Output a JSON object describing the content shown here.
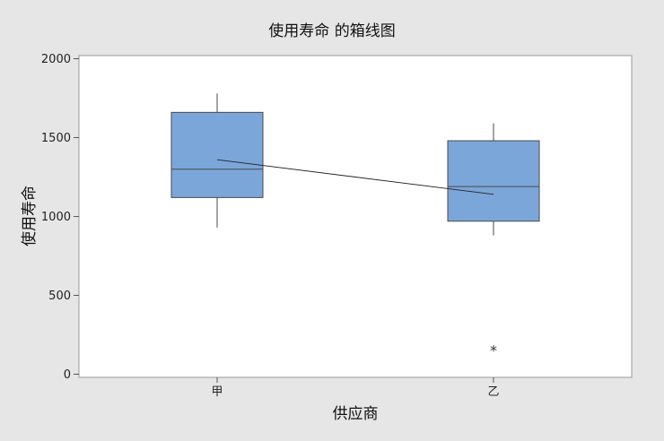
{
  "chart_data": {
    "type": "box",
    "title": "使用寿命 的箱线图",
    "xlabel": "供应商",
    "ylabel": "使用寿命",
    "categories": [
      "甲",
      "乙"
    ],
    "ylim": [
      -20,
      2020
    ],
    "yticks": [
      0,
      500,
      1000,
      1500,
      2000
    ],
    "grid": false,
    "boxes": [
      {
        "category": "甲",
        "whisker_low": 930,
        "q1": 1120,
        "median": 1300,
        "q3": 1660,
        "whisker_high": 1780,
        "mean": 1360,
        "outliers": []
      },
      {
        "category": "乙",
        "whisker_low": 880,
        "q1": 970,
        "median": 1190,
        "q3": 1480,
        "whisker_high": 1590,
        "mean": 1140,
        "outliers": [
          165
        ]
      }
    ],
    "mean_connect_line": true,
    "box_color": "#7ba6d9",
    "box_stroke": "#4a4a4a",
    "plot_background": "#ffffff",
    "outer_background": "#e6e6e6"
  }
}
